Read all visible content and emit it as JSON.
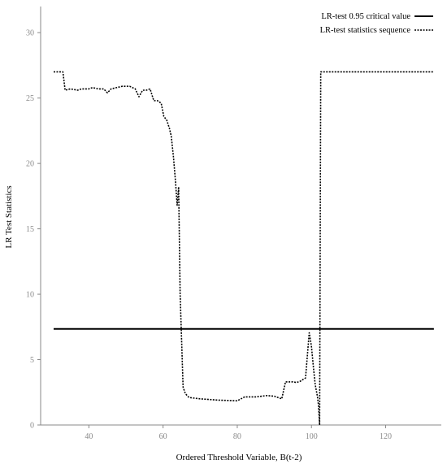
{
  "chart_data": {
    "type": "line",
    "title": "",
    "xlabel": "Ordered Threshold Variable, B(t-2)",
    "ylabel": "LR Test Statistics",
    "xlim": [
      27,
      135
    ],
    "ylim": [
      0,
      32
    ],
    "x_ticks": [
      "40",
      "60",
      "80",
      "100",
      "120"
    ],
    "y_ticks": [
      "0",
      "5",
      "10",
      "15",
      "20",
      "25",
      "30"
    ],
    "grid": false,
    "legend_position": "top-right",
    "series": [
      {
        "name": "LR-test 0.95 critical value",
        "style": "solid",
        "x": [
          30.5,
          133
        ],
        "y": [
          7.35,
          7.35
        ]
      },
      {
        "name": "LR-test statistics sequence",
        "style": "dotted",
        "x": [
          30.5,
          33,
          33.6,
          35,
          37,
          38,
          40,
          41,
          42.5,
          44,
          45,
          46,
          47.5,
          49,
          50,
          51,
          52.5,
          53.5,
          54.5,
          55.5,
          56.5,
          57.5,
          58.5,
          59.5,
          60.2,
          61,
          61.7,
          62.2,
          62.8,
          63.3,
          63.8,
          64.2,
          64.6,
          65.4,
          66,
          67,
          70,
          75,
          80,
          81,
          82,
          85,
          88,
          90,
          92,
          93,
          95,
          96,
          97,
          98.4,
          99.4,
          100,
          100.5,
          101,
          101.4,
          101.6,
          101.9,
          102.2,
          102.5,
          133
        ],
        "y": [
          27.0,
          27.0,
          25.6,
          25.7,
          25.6,
          25.7,
          25.7,
          25.8,
          25.7,
          25.7,
          25.4,
          25.7,
          25.8,
          25.9,
          25.9,
          25.9,
          25.7,
          25.1,
          25.6,
          25.6,
          25.7,
          24.8,
          24.8,
          24.6,
          23.6,
          23.3,
          22.7,
          22.1,
          20.5,
          18.8,
          16.8,
          18.2,
          10.0,
          2.9,
          2.4,
          2.1,
          2.0,
          1.9,
          1.85,
          2.0,
          2.15,
          2.15,
          2.25,
          2.2,
          2.0,
          3.3,
          3.3,
          3.25,
          3.35,
          3.6,
          7.05,
          6.0,
          4.5,
          3.1,
          2.5,
          2.2,
          1.5,
          0.0,
          27.0,
          27.0
        ]
      }
    ]
  }
}
